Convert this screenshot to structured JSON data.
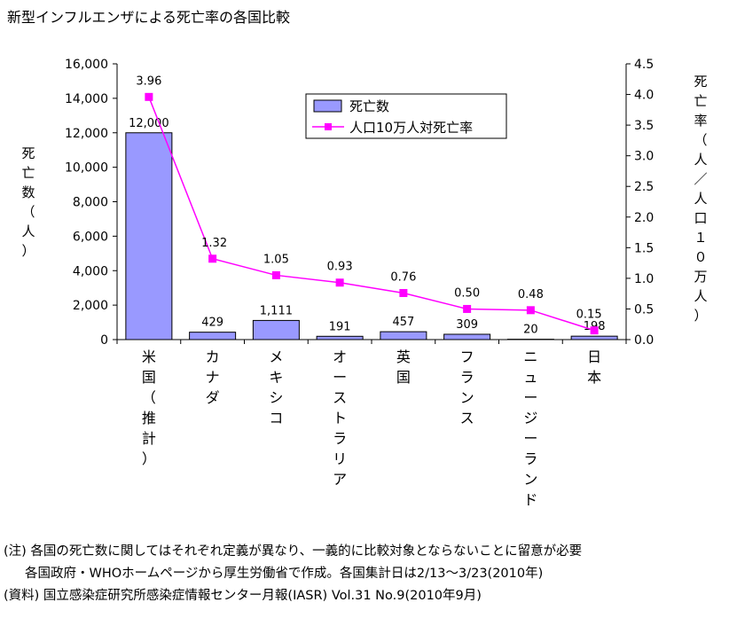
{
  "title": "新型インフルエンザによる死亡率の各国比較",
  "notes": {
    "line1": "(注) 各国の死亡数に関してはそれぞれ定義が異なり、一義的に比較対象とならないことに留意が必要",
    "line2": "各国政府・WHOホームページから厚生労働省で作成。各国集計日は2/13〜3/23(2010年)",
    "line3": "(資料) 国立感染症研究所感染症情報センター月報(IASR) Vol.31  No.9(2010年9月)"
  },
  "chart_data": {
    "type": "bar",
    "categories": [
      "米国（推計）",
      "カナダ",
      "メキシコ",
      "オーストラリア",
      "英国",
      "フランス",
      "ニュージーランド",
      "日本"
    ],
    "category_labels_vertical": [
      [
        "米",
        "国",
        "（",
        "推",
        "計",
        "）"
      ],
      [
        "カ",
        "ナ",
        "ダ"
      ],
      [
        "メ",
        "キ",
        "シ",
        "コ"
      ],
      [
        "オ",
        "ー",
        "ス",
        "ト",
        "ラ",
        "リ",
        "ア"
      ],
      [
        "英",
        "国"
      ],
      [
        "フ",
        "ラ",
        "ン",
        "ス"
      ],
      [
        "ニ",
        "ュ",
        "ー",
        "ジ",
        "ー",
        "ラ",
        "ン",
        "ド"
      ],
      [
        "日",
        "本"
      ]
    ],
    "series": [
      {
        "name": "死亡数",
        "type": "bar",
        "axis": "left",
        "values": [
          12000,
          429,
          1111,
          191,
          457,
          309,
          20,
          198
        ],
        "labels": [
          "12,000",
          "429",
          "1,111",
          "191",
          "457",
          "309",
          "20",
          "198"
        ],
        "color": "#9999ff"
      },
      {
        "name": "人口10万人対死亡率",
        "type": "line",
        "axis": "right",
        "values": [
          3.96,
          1.32,
          1.05,
          0.93,
          0.76,
          0.5,
          0.48,
          0.15
        ],
        "labels": [
          "3.96",
          "1.32",
          "1.05",
          "0.93",
          "0.76",
          "0.50",
          "0.48",
          "0.15"
        ],
        "color": "#ff00ff"
      }
    ],
    "y_left": {
      "label_chars": [
        "死",
        "亡",
        "数",
        "（",
        "人",
        "）"
      ],
      "min": 0,
      "max": 16000,
      "ticks": [
        "0",
        "2,000",
        "4,000",
        "6,000",
        "8,000",
        "10,000",
        "12,000",
        "14,000",
        "16,000"
      ]
    },
    "y_right": {
      "label_chars": [
        "死",
        "亡",
        "率",
        "（",
        "人",
        "／",
        "人",
        "口",
        "１",
        "０",
        "万",
        "人",
        "）"
      ],
      "min": 0,
      "max": 4.5,
      "ticks": [
        "0.0",
        "0.5",
        "1.0",
        "1.5",
        "2.0",
        "2.5",
        "3.0",
        "3.5",
        "4.0",
        "4.5"
      ]
    },
    "legend_position": "top-right",
    "grid": false
  }
}
